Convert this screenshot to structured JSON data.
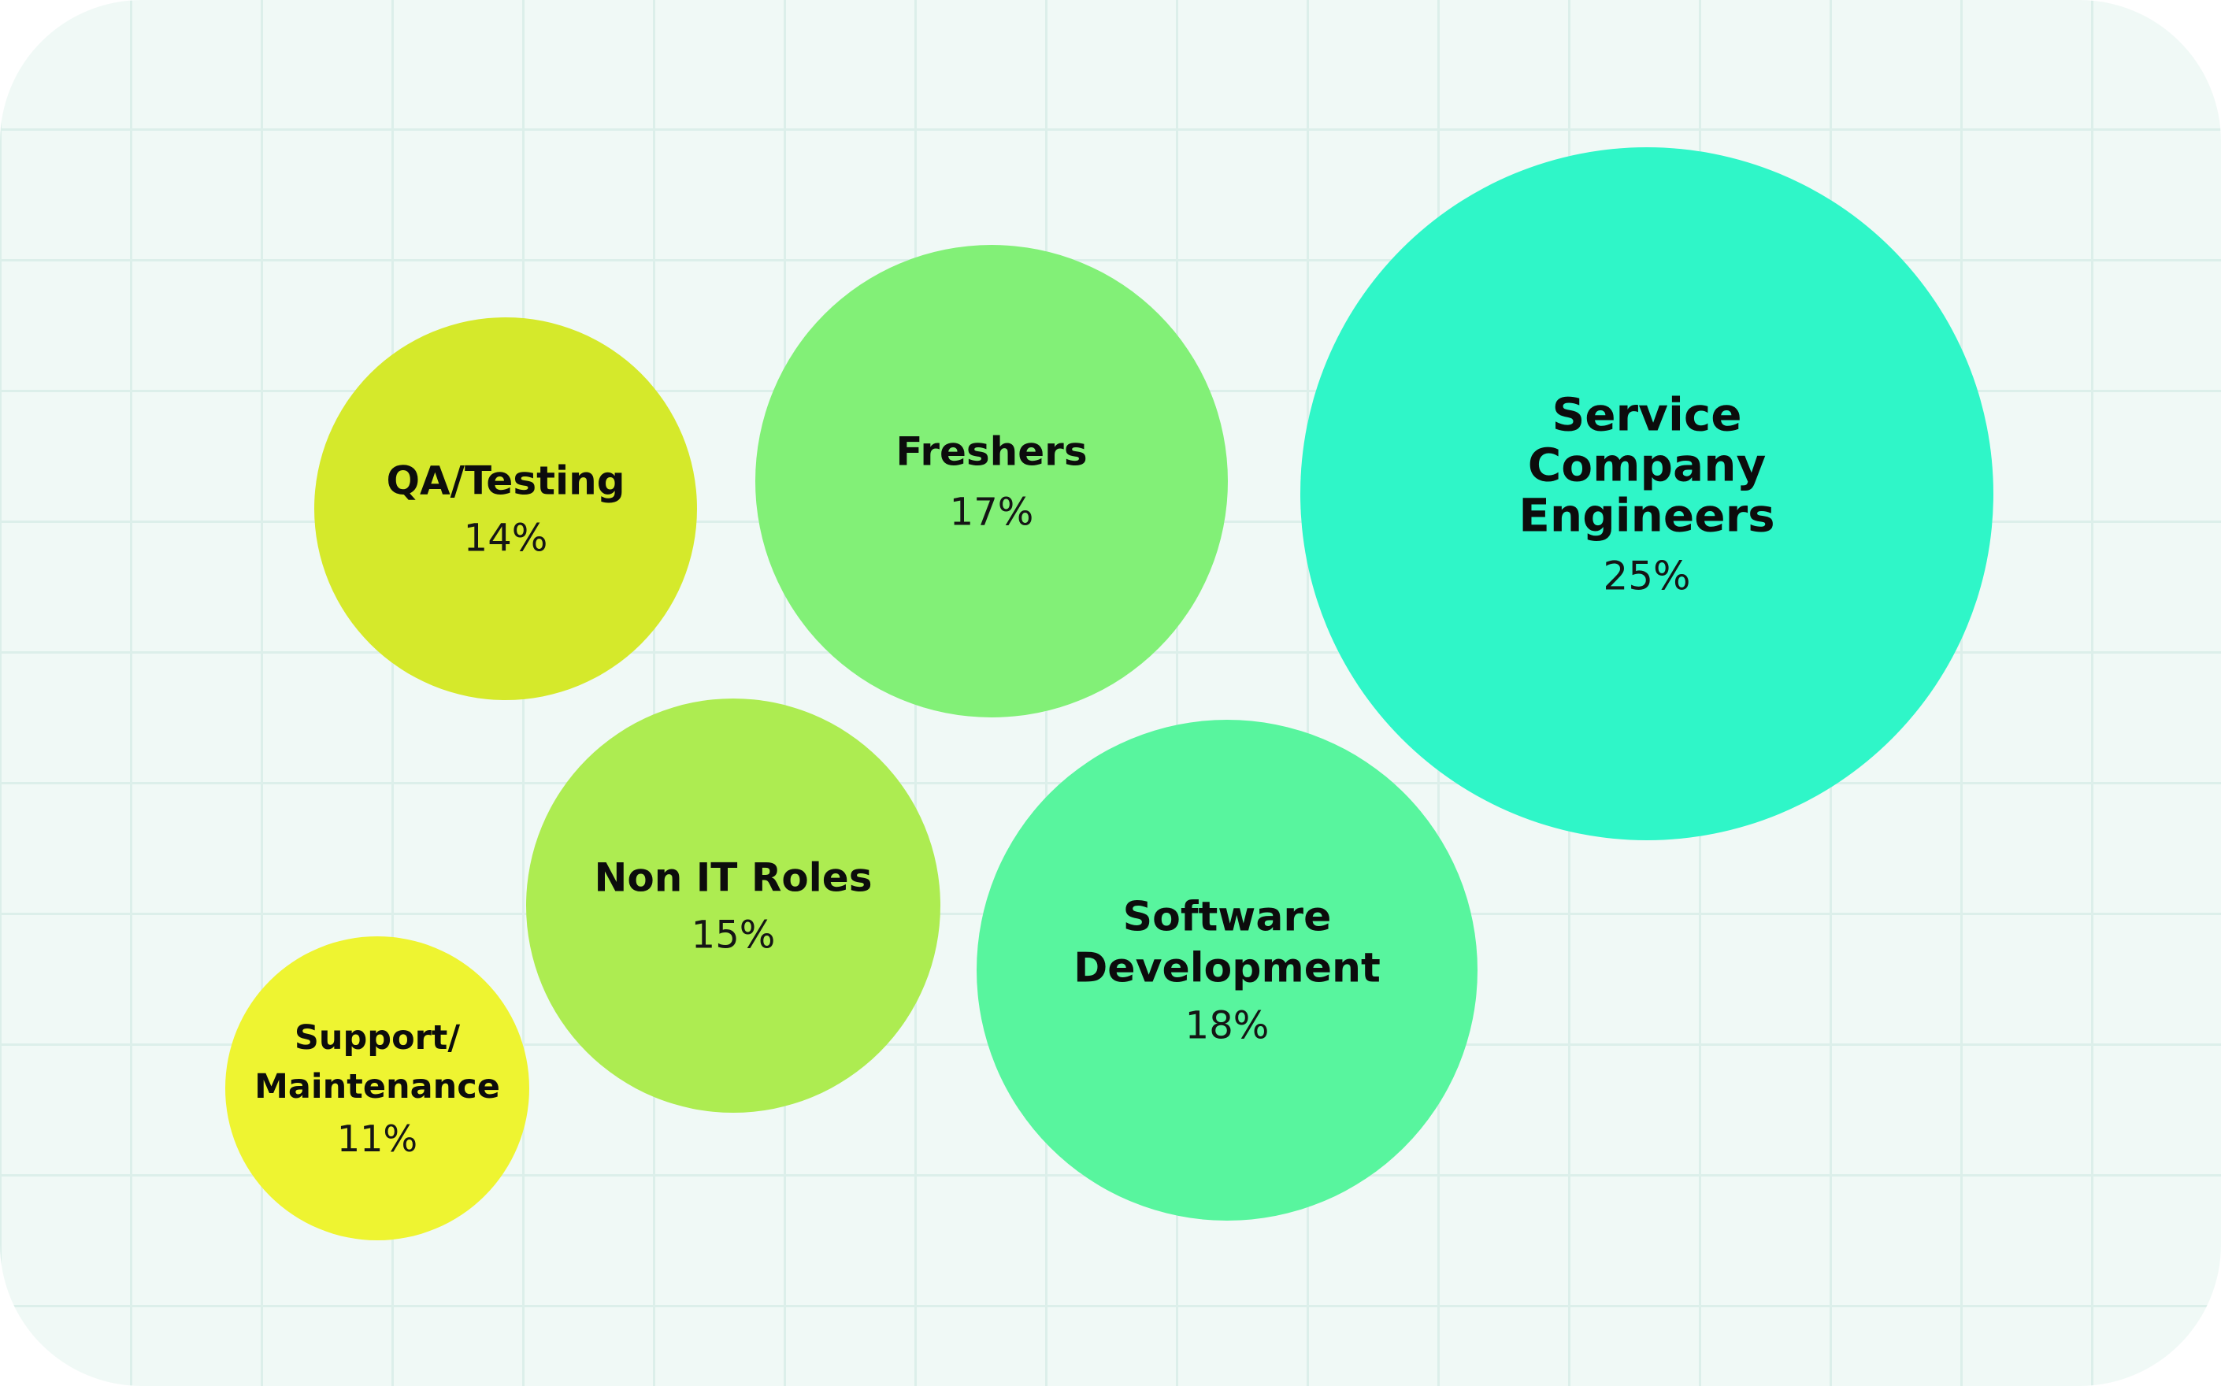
{
  "chart_data": {
    "type": "bubble",
    "unit": "%",
    "series": [
      {
        "name": "Service Company Engineers",
        "label_lines": [
          "Service",
          "Company",
          "Engineers"
        ],
        "value": 25,
        "value_label": "25%",
        "color": "#2ff6c8"
      },
      {
        "name": "Software Development",
        "label_lines": [
          "Software",
          "Development"
        ],
        "value": 18,
        "value_label": "18%",
        "color": "#58f59e"
      },
      {
        "name": "Freshers",
        "label_lines": [
          "Freshers"
        ],
        "value": 17,
        "value_label": "17%",
        "color": "#82f077"
      },
      {
        "name": "Non IT Roles",
        "label_lines": [
          "Non IT Roles"
        ],
        "value": 15,
        "value_label": "15%",
        "color": "#adec51"
      },
      {
        "name": "QA/Testing",
        "label_lines": [
          "QA/Testing"
        ],
        "value": 14,
        "value_label": "14%",
        "color": "#d5e92b"
      },
      {
        "name": "Support/ Maintenance",
        "label_lines": [
          "Support/",
          "Maintenance"
        ],
        "value": 11,
        "value_label": "11%",
        "color": "#eef431"
      }
    ],
    "grid": true,
    "background_color": "#f0f9f6",
    "grid_color": "#dcefea"
  }
}
